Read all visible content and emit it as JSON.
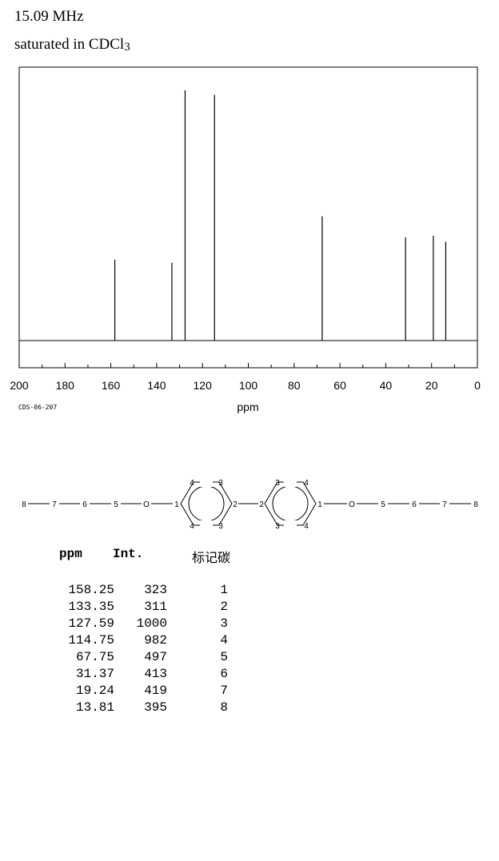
{
  "header": {
    "frequency": "15.09 MHz",
    "solvent_prefix": "saturated in CDCl",
    "solvent_subscript": "3"
  },
  "chart_data": {
    "type": "line",
    "xlabel": "ppm",
    "xlim": [
      200,
      0
    ],
    "x_ticks": [
      "200",
      "180",
      "160",
      "140",
      "120",
      "100",
      "80",
      "60",
      "40",
      "20",
      "0"
    ],
    "code": "CDS-06-207",
    "peaks": [
      {
        "ppm": 158.25,
        "intensity": 323,
        "label": "1"
      },
      {
        "ppm": 133.35,
        "intensity": 311,
        "label": "2"
      },
      {
        "ppm": 127.59,
        "intensity": 1000,
        "label": "3"
      },
      {
        "ppm": 114.75,
        "intensity": 982,
        "label": "4"
      },
      {
        "ppm": 67.75,
        "intensity": 497,
        "label": "5"
      },
      {
        "ppm": 31.37,
        "intensity": 413,
        "label": "6"
      },
      {
        "ppm": 19.24,
        "intensity": 419,
        "label": "7"
      },
      {
        "ppm": 13.81,
        "intensity": 395,
        "label": "8"
      }
    ]
  },
  "structure": {
    "left_chain": [
      "8",
      "7",
      "6",
      "5",
      "O"
    ],
    "ring_left_labels": {
      "ipso_o": "1",
      "top_a": "4",
      "top_b": "3",
      "bottom_a": "4",
      "bottom_b": "3",
      "ipso_link": "2"
    },
    "ring_right_labels": {
      "ipso_link": "2",
      "top_a": "3",
      "top_b": "4",
      "bottom_a": "3",
      "bottom_b": "4",
      "ipso_o": "1"
    },
    "right_chain": [
      "O",
      "5",
      "6",
      "7",
      "8"
    ]
  },
  "table": {
    "col_ppm": "ppm",
    "col_int": "Int.",
    "col_label": "标记碳",
    "rows": [
      {
        "ppm": "158.25",
        "int": "323",
        "label": "1"
      },
      {
        "ppm": "133.35",
        "int": "311",
        "label": "2"
      },
      {
        "ppm": "127.59",
        "int": "1000",
        "label": "3"
      },
      {
        "ppm": "114.75",
        "int": "982",
        "label": "4"
      },
      {
        "ppm": "67.75",
        "int": "497",
        "label": "5"
      },
      {
        "ppm": "31.37",
        "int": "413",
        "label": "6"
      },
      {
        "ppm": "19.24",
        "int": "419",
        "label": "7"
      },
      {
        "ppm": "13.81",
        "int": "395",
        "label": "8"
      }
    ]
  }
}
